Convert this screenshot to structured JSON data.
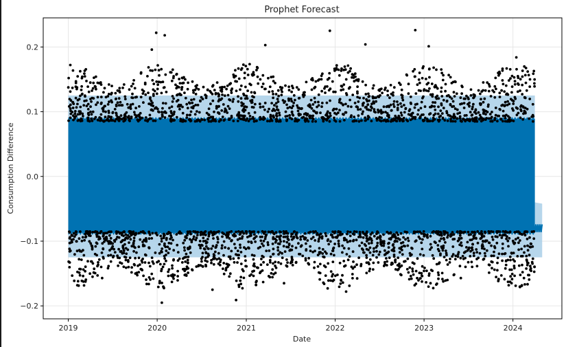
{
  "chart_data": {
    "type": "scatter",
    "title": "Prophet Forecast",
    "xlabel": "Date",
    "ylabel": "Consumption Difference",
    "x_ticks": [
      "2019",
      "2020",
      "2021",
      "2022",
      "2023",
      "2024"
    ],
    "y_ticks": [
      "0.2",
      "0.1",
      "0.0",
      "−0.1",
      "−0.2"
    ],
    "xlim": [
      "2018-09-20",
      "2024-07-20"
    ],
    "ylim": [
      -0.22,
      0.245
    ],
    "grid": true,
    "legend": "none",
    "history_start": "2019-01-01",
    "history_end": "2024-03-31",
    "forecast_end": "2024-04-30",
    "series": [
      {
        "kind": "observed_points",
        "color": "#000000",
        "notable_points": [
          {
            "x": "2019-12-28",
            "y": 0.222
          },
          {
            "x": "2020-02-01",
            "y": 0.218
          },
          {
            "x": "2021-12-10",
            "y": 0.225
          },
          {
            "x": "2022-11-26",
            "y": 0.226
          },
          {
            "x": "2019-12-10",
            "y": 0.196
          },
          {
            "x": "2021-03-20",
            "y": 0.203
          },
          {
            "x": "2022-05-05",
            "y": 0.204
          },
          {
            "x": "2023-01-20",
            "y": 0.201
          },
          {
            "x": "2024-01-15",
            "y": 0.184
          },
          {
            "x": "2020-01-20",
            "y": -0.195
          },
          {
            "x": "2020-11-20",
            "y": -0.191
          },
          {
            "x": "2022-02-15",
            "y": -0.178
          },
          {
            "x": "2021-12-01",
            "y": -0.173
          },
          {
            "x": "2020-08-15",
            "y": -0.175
          },
          {
            "x": "2023-02-20",
            "y": -0.167
          },
          {
            "x": "2021-06-05",
            "y": -0.165
          },
          {
            "x": "2019-05-20",
            "y": -0.157
          },
          {
            "x": "2023-06-01",
            "y": -0.157
          }
        ]
      },
      {
        "kind": "forecast",
        "color": "#0072b2",
        "upper": 0.089,
        "lower": -0.087,
        "forecast_level": -0.08
      },
      {
        "kind": "uncertainty_interval",
        "color": "#a9cfe8",
        "upper": 0.125,
        "lower": -0.125
      }
    ]
  }
}
